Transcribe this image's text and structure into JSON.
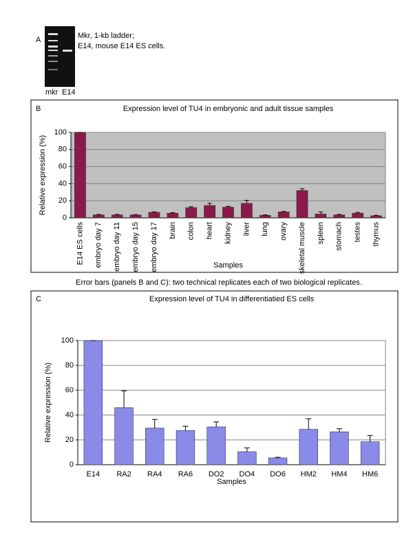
{
  "panel_a": {
    "label": "A",
    "notes": [
      "Mkr, 1-kb ladder;",
      "E14, mouse E14 ES cells."
    ],
    "lanes": [
      "mkr",
      "E14"
    ]
  },
  "caption": "Error bars (panels B and C): two technical replicates each of two biological replicates.",
  "chart_data": [
    {
      "type": "bar",
      "panel": "B",
      "title": "Expression level of TU4 in embryonic and adult tissue samples",
      "x_label": "Samples",
      "y_label": "Relative expression (%)",
      "categories": [
        "E14 ES cells",
        "embryo day 7",
        "embryo day 11",
        "embryo day 15",
        "embryo day 17",
        "brain",
        "colon",
        "heart",
        "kidney",
        "liver",
        "lung",
        "ovary",
        "skeletal muscle",
        "spleen",
        "stomach",
        "testes",
        "thymus"
      ],
      "values": [
        100,
        3.5,
        3.5,
        3.5,
        6.5,
        5.5,
        12,
        14.5,
        12.5,
        17,
        3,
        7,
        32,
        4.5,
        3.5,
        5.5,
        2.5
      ],
      "errors": [
        0,
        0.5,
        0.5,
        0.3,
        0.5,
        0.5,
        1,
        2.5,
        1,
        3.5,
        0.5,
        0.5,
        2,
        2.5,
        0.5,
        0.8,
        0.5
      ],
      "color": "#8b1a4a",
      "background": "#c0c0c0",
      "ylim": [
        0,
        100
      ],
      "yticks": [
        0,
        20,
        40,
        60,
        80,
        100
      ],
      "grid": true
    },
    {
      "type": "bar",
      "panel": "C",
      "title": "Expression level of TU4 in differentiatied ES cells",
      "x_label": "Samples",
      "y_label": "Relative expression (%)",
      "categories": [
        "E14",
        "RA2",
        "RA4",
        "RA6",
        "DO2",
        "DO4",
        "DO6",
        "HM2",
        "HM4",
        "HM6"
      ],
      "values": [
        100,
        46,
        29.5,
        27.5,
        30.5,
        10.5,
        5.5,
        28.5,
        26.5,
        18.5
      ],
      "errors": [
        0,
        13.5,
        7,
        3.5,
        4,
        3,
        0.5,
        8.5,
        2.5,
        5
      ],
      "color": "#8a8ae8",
      "background": "#ffffff",
      "ylim": [
        0,
        100
      ],
      "yticks": [
        0,
        20,
        40,
        60,
        80,
        100
      ],
      "grid": true
    }
  ]
}
